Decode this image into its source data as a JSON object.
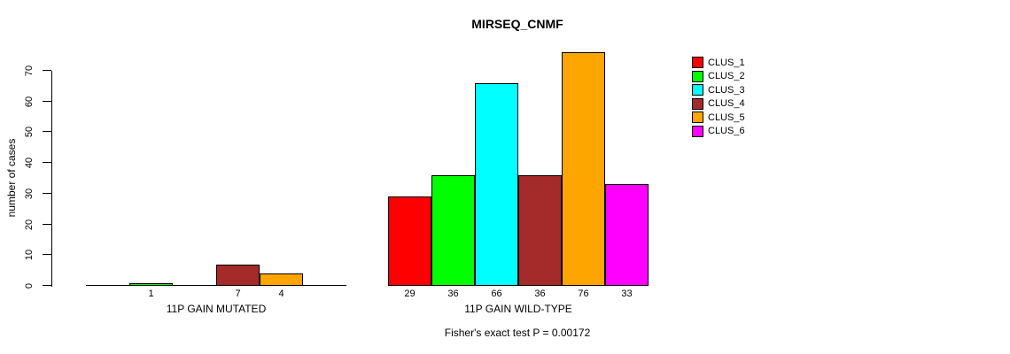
{
  "title": "MIRSEQ_CNMF",
  "ylabel": "number of cases",
  "footnote": "Fisher's exact test P = 0.00172",
  "legend": {
    "entries": [
      {
        "label": "CLUS_1",
        "color": "#FF0000"
      },
      {
        "label": "CLUS_2",
        "color": "#00FF00"
      },
      {
        "label": "CLUS_3",
        "color": "#00FFFF"
      },
      {
        "label": "CLUS_4",
        "color": "#A52A2A"
      },
      {
        "label": "CLUS_5",
        "color": "#FFA500"
      },
      {
        "label": "CLUS_6",
        "color": "#FF00FF"
      }
    ]
  },
  "chart_data": {
    "type": "bar",
    "title": "MIRSEQ_CNMF",
    "ylabel": "number of cases",
    "xlabel": "",
    "ylim": [
      0,
      70
    ],
    "yticks": [
      0,
      10,
      20,
      30,
      40,
      50,
      60,
      70
    ],
    "grid": false,
    "legend_position": "right-outside",
    "series": [
      "CLUS_1",
      "CLUS_2",
      "CLUS_3",
      "CLUS_4",
      "CLUS_5",
      "CLUS_6"
    ],
    "colors": [
      "#FF0000",
      "#00FF00",
      "#00FFFF",
      "#A52A2A",
      "#FFA500",
      "#FF00FF"
    ],
    "groups": [
      {
        "label": "11P GAIN MUTATED",
        "values": [
          0,
          1,
          0,
          7,
          4,
          0
        ],
        "bar_labels": [
          "",
          "1",
          "",
          "7",
          "4",
          ""
        ]
      },
      {
        "label": "11P GAIN WILD-TYPE",
        "values": [
          29,
          36,
          66,
          36,
          76,
          33
        ],
        "bar_labels": [
          "29",
          "36",
          "66",
          "36",
          "76",
          "33"
        ]
      }
    ],
    "annotation": "Fisher's exact test P = 0.00172"
  }
}
